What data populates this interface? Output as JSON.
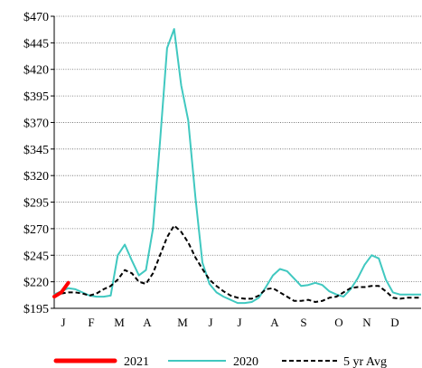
{
  "chart_data": {
    "type": "line",
    "title": "",
    "xlabel": "",
    "ylabel": "",
    "ylim": [
      195,
      470
    ],
    "y_ticks": [
      "$470",
      "$445",
      "$420",
      "$395",
      "$370",
      "$345",
      "$320",
      "$295",
      "$270",
      "$245",
      "$220",
      "$195"
    ],
    "y_tick_values": [
      470,
      445,
      420,
      395,
      370,
      345,
      320,
      295,
      270,
      245,
      220,
      195
    ],
    "x_ticks": [
      "J",
      "F",
      "M",
      "A",
      "M",
      "J",
      "J",
      "A",
      "S",
      "O",
      "N",
      "D"
    ],
    "x_range_weeks": [
      1,
      53
    ],
    "grid": "horizontal dotted",
    "legend_position": "bottom",
    "series": [
      {
        "name": "2021",
        "color": "#ff0000",
        "style": "solid-thick",
        "x": [
          1,
          2,
          3
        ],
        "values": [
          206,
          210,
          219
        ]
      },
      {
        "name": "2020",
        "color": "#40c8c0",
        "style": "solid",
        "x": [
          1,
          2,
          3,
          4,
          5,
          6,
          7,
          8,
          9,
          10,
          11,
          12,
          13,
          14,
          15,
          16,
          17,
          18,
          19,
          20,
          21,
          22,
          23,
          24,
          25,
          26,
          27,
          28,
          29,
          30,
          31,
          32,
          33,
          34,
          35,
          36,
          37,
          38,
          39,
          40,
          41,
          42,
          43,
          44,
          45,
          46,
          47,
          48,
          49,
          50,
          51,
          52,
          53
        ],
        "values": [
          208,
          211,
          214,
          213,
          210,
          207,
          206,
          206,
          207,
          245,
          255,
          240,
          226,
          231,
          270,
          352,
          440,
          458,
          405,
          372,
          300,
          238,
          218,
          210,
          206,
          203,
          200,
          200,
          201,
          205,
          215,
          226,
          232,
          230,
          223,
          216,
          217,
          219,
          217,
          211,
          208,
          206,
          213,
          223,
          236,
          245,
          242,
          222,
          210,
          208,
          208,
          208,
          208
        ]
      },
      {
        "name": "5 yr Avg",
        "color": "#000000",
        "style": "dashed",
        "x": [
          1,
          2,
          3,
          4,
          5,
          6,
          7,
          8,
          9,
          10,
          11,
          12,
          13,
          14,
          15,
          16,
          17,
          18,
          19,
          20,
          21,
          22,
          23,
          24,
          25,
          26,
          27,
          28,
          29,
          30,
          31,
          32,
          33,
          34,
          35,
          36,
          37,
          38,
          39,
          40,
          41,
          42,
          43,
          44,
          45,
          46,
          47,
          48,
          49,
          50,
          51,
          52,
          53
        ],
        "values": [
          207,
          209,
          210,
          210,
          209,
          207,
          209,
          213,
          216,
          222,
          231,
          228,
          220,
          218,
          228,
          245,
          262,
          273,
          267,
          257,
          243,
          232,
          222,
          216,
          211,
          207,
          205,
          204,
          204,
          207,
          213,
          214,
          210,
          206,
          202,
          202,
          203,
          201,
          202,
          205,
          206,
          210,
          214,
          215,
          215,
          216,
          216,
          211,
          205,
          204,
          205,
          205,
          205
        ]
      }
    ]
  }
}
